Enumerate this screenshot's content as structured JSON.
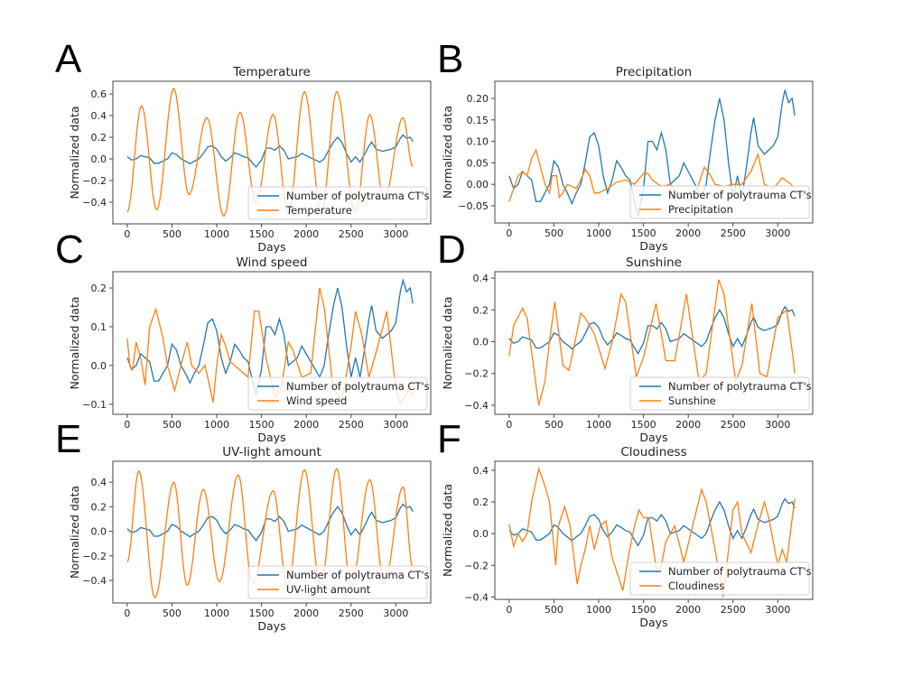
{
  "chart_data": [
    {
      "panel": "A",
      "type": "line",
      "title": "Temperature",
      "xlabel": "Days",
      "ylabel": "Normalized data",
      "xlim": [
        -160,
        3390
      ],
      "ylim": [
        -0.6,
        0.717
      ],
      "xticks": [
        0,
        500,
        1000,
        1500,
        2000,
        2500,
        3000
      ],
      "yticks": [
        -0.4,
        -0.2,
        0.0,
        0.2,
        0.4,
        0.6
      ],
      "ytick_labels": [
        "−0.4",
        "−0.2",
        "0.0",
        "0.2",
        "0.4",
        "0.6"
      ],
      "legend": [
        "Number of polytrauma CT's",
        "Temperature"
      ],
      "legend_placement": "lower-right",
      "smooth": true,
      "series": [
        [
          0,
          -0.49
        ],
        [
          160,
          0.49
        ],
        [
          330,
          -0.47
        ],
        [
          520,
          0.65
        ],
        [
          690,
          -0.33
        ],
        [
          890,
          0.38
        ],
        [
          1080,
          -0.53
        ],
        [
          1260,
          0.43
        ],
        [
          1440,
          -0.4
        ],
        [
          1630,
          0.41
        ],
        [
          1800,
          -0.5
        ],
        [
          1980,
          0.62
        ],
        [
          2170,
          -0.5
        ],
        [
          2340,
          0.62
        ],
        [
          2550,
          -0.5
        ],
        [
          2710,
          0.41
        ],
        [
          2870,
          -0.38
        ],
        [
          3080,
          0.38
        ],
        [
          3190,
          -0.07
        ]
      ]
    },
    {
      "panel": "B",
      "type": "line",
      "title": "Precipitation",
      "xlabel": "Days",
      "ylabel": "Normalized data",
      "xlim": [
        -160,
        3390
      ],
      "ylim": [
        -0.09,
        0.24
      ],
      "xticks": [
        0,
        500,
        1000,
        1500,
        2000,
        2500,
        3000
      ],
      "yticks": [
        -0.05,
        0.0,
        0.05,
        0.1,
        0.15,
        0.2
      ],
      "ytick_labels": [
        "−0.05",
        "0.00",
        "0.05",
        "0.10",
        "0.15",
        "0.20"
      ],
      "legend": [
        "Number of polytrauma CT's",
        "Precipitation"
      ],
      "legend_placement": "lower-right",
      "smooth": false,
      "series": [
        [
          0,
          -0.04
        ],
        [
          50,
          -0.01
        ],
        [
          100,
          0.02
        ],
        [
          150,
          0.03
        ],
        [
          200,
          0.02
        ],
        [
          250,
          0.06
        ],
        [
          300,
          0.08
        ],
        [
          350,
          0.04
        ],
        [
          400,
          0.0
        ],
        [
          450,
          -0.02
        ],
        [
          480,
          0.02
        ],
        [
          530,
          0.02
        ],
        [
          560,
          -0.03
        ],
        [
          600,
          -0.02
        ],
        [
          650,
          0.0
        ],
        [
          700,
          -0.005
        ],
        [
          750,
          -0.01
        ],
        [
          800,
          0.01
        ],
        [
          850,
          0.035
        ],
        [
          900,
          0.02
        ],
        [
          950,
          -0.02
        ],
        [
          1000,
          -0.02
        ],
        [
          1100,
          -0.01
        ],
        [
          1200,
          0.005
        ],
        [
          1300,
          0.01
        ],
        [
          1400,
          0.0
        ],
        [
          1500,
          0.025
        ],
        [
          1550,
          0.025
        ],
        [
          1600,
          0.01
        ],
        [
          1700,
          -0.005
        ],
        [
          1800,
          0.0
        ],
        [
          1900,
          -0.02
        ],
        [
          2000,
          -0.04
        ],
        [
          2100,
          -0.01
        ],
        [
          2180,
          0.04
        ],
        [
          2250,
          0.02
        ],
        [
          2300,
          0.0
        ],
        [
          2400,
          -0.005
        ],
        [
          2500,
          0.0
        ],
        [
          2600,
          0.0
        ],
        [
          2700,
          0.03
        ],
        [
          2780,
          0.07
        ],
        [
          2850,
          0.0
        ],
        [
          2950,
          -0.01
        ],
        [
          3050,
          0.015
        ],
        [
          3150,
          0.0
        ],
        [
          3190,
          -0.01
        ]
      ]
    },
    {
      "panel": "C",
      "type": "line",
      "title": "Wind speed",
      "xlabel": "Days",
      "ylabel": "Normalized data",
      "xlim": [
        -160,
        3390
      ],
      "ylim": [
        -0.126,
        0.242
      ],
      "xticks": [
        0,
        500,
        1000,
        1500,
        2000,
        2500,
        3000
      ],
      "yticks": [
        -0.1,
        0.0,
        0.1,
        0.2
      ],
      "ytick_labels": [
        "−0.1",
        "0.0",
        "0.1",
        "0.2"
      ],
      "legend": [
        "Number of polytrauma CT's",
        "Wind speed"
      ],
      "legend_placement": "lower-right",
      "smooth": false,
      "series": [
        [
          0,
          0.07
        ],
        [
          30,
          0.0
        ],
        [
          60,
          -0.01
        ],
        [
          100,
          0.06
        ],
        [
          150,
          0.02
        ],
        [
          200,
          -0.05
        ],
        [
          250,
          0.1
        ],
        [
          320,
          0.145
        ],
        [
          400,
          0.07
        ],
        [
          450,
          0.0
        ],
        [
          530,
          -0.065
        ],
        [
          600,
          0.0
        ],
        [
          670,
          0.06
        ],
        [
          720,
          0.0
        ],
        [
          800,
          -0.02
        ],
        [
          870,
          0.0
        ],
        [
          960,
          -0.095
        ],
        [
          1000,
          0.0
        ],
        [
          1050,
          0.08
        ],
        [
          1100,
          0.05
        ],
        [
          1150,
          0.01
        ],
        [
          1250,
          -0.01
        ],
        [
          1350,
          -0.03
        ],
        [
          1420,
          0.14
        ],
        [
          1470,
          0.14
        ],
        [
          1550,
          0.02
        ],
        [
          1650,
          -0.08
        ],
        [
          1720,
          -0.06
        ],
        [
          1800,
          0.06
        ],
        [
          1850,
          0.04
        ],
        [
          1950,
          -0.03
        ],
        [
          2050,
          -0.02
        ],
        [
          2150,
          0.2
        ],
        [
          2200,
          0.15
        ],
        [
          2300,
          -0.06
        ],
        [
          2400,
          -0.09
        ],
        [
          2500,
          0.05
        ],
        [
          2550,
          0.14
        ],
        [
          2620,
          0.08
        ],
        [
          2700,
          -0.03
        ],
        [
          2800,
          0.05
        ],
        [
          2900,
          0.14
        ],
        [
          3000,
          -0.06
        ],
        [
          3050,
          -0.1
        ],
        [
          3150,
          -0.06
        ],
        [
          3190,
          -0.08
        ]
      ]
    },
    {
      "panel": "D",
      "type": "line",
      "title": "Sunshine",
      "xlabel": "Days",
      "ylabel": "Normalized data",
      "xlim": [
        -160,
        3390
      ],
      "ylim": [
        -0.457,
        0.44
      ],
      "xticks": [
        0,
        500,
        1000,
        1500,
        2000,
        2500,
        3000
      ],
      "yticks": [
        -0.4,
        -0.2,
        0.0,
        0.2,
        0.4
      ],
      "ytick_labels": [
        "−0.4",
        "−0.2",
        "0.0",
        "0.2",
        "0.4"
      ],
      "legend": [
        "Number of polytrauma CT's",
        "Sunshine"
      ],
      "legend_placement": "lower-right",
      "smooth": false,
      "series": [
        [
          0,
          -0.09
        ],
        [
          50,
          0.1
        ],
        [
          150,
          0.21
        ],
        [
          200,
          0.15
        ],
        [
          330,
          -0.4
        ],
        [
          400,
          -0.25
        ],
        [
          450,
          0.0
        ],
        [
          510,
          0.25
        ],
        [
          600,
          -0.15
        ],
        [
          670,
          -0.18
        ],
        [
          800,
          0.18
        ],
        [
          850,
          0.15
        ],
        [
          950,
          0.05
        ],
        [
          1070,
          -0.17
        ],
        [
          1150,
          0.0
        ],
        [
          1250,
          0.3
        ],
        [
          1300,
          0.25
        ],
        [
          1420,
          -0.22
        ],
        [
          1500,
          -0.1
        ],
        [
          1640,
          0.24
        ],
        [
          1750,
          -0.12
        ],
        [
          1850,
          -0.12
        ],
        [
          1980,
          0.3
        ],
        [
          2120,
          -0.25
        ],
        [
          2200,
          -0.2
        ],
        [
          2340,
          0.39
        ],
        [
          2400,
          0.3
        ],
        [
          2530,
          -0.25
        ],
        [
          2600,
          -0.15
        ],
        [
          2710,
          0.24
        ],
        [
          2800,
          -0.2
        ],
        [
          2880,
          -0.22
        ],
        [
          3000,
          0.15
        ],
        [
          3100,
          0.2
        ],
        [
          3170,
          -0.1
        ],
        [
          3190,
          -0.2
        ]
      ]
    },
    {
      "panel": "E",
      "type": "line",
      "title": "UV-light amount",
      "xlabel": "Days",
      "ylabel": "Normalized data",
      "xlim": [
        -160,
        3390
      ],
      "ylim": [
        -0.584,
        0.57
      ],
      "xticks": [
        0,
        500,
        1000,
        1500,
        2000,
        2500,
        3000
      ],
      "yticks": [
        -0.4,
        -0.2,
        0.0,
        0.2,
        0.4
      ],
      "ytick_labels": [
        "−0.4",
        "−0.2",
        "0.0",
        "0.2",
        "0.4"
      ],
      "legend": [
        "Number of polytrauma CT's",
        "UV-light amount"
      ],
      "legend_placement": "lower-right",
      "smooth": true,
      "series": [
        [
          0,
          -0.25
        ],
        [
          130,
          0.49
        ],
        [
          310,
          -0.54
        ],
        [
          520,
          0.4
        ],
        [
          670,
          -0.44
        ],
        [
          850,
          0.34
        ],
        [
          1030,
          -0.41
        ],
        [
          1240,
          0.46
        ],
        [
          1400,
          -0.43
        ],
        [
          1630,
          0.33
        ],
        [
          1790,
          -0.45
        ],
        [
          1980,
          0.5
        ],
        [
          2160,
          -0.45
        ],
        [
          2340,
          0.51
        ],
        [
          2500,
          -0.45
        ],
        [
          2710,
          0.42
        ],
        [
          2870,
          -0.43
        ],
        [
          3080,
          0.36
        ],
        [
          3190,
          -0.3
        ]
      ]
    },
    {
      "panel": "F",
      "type": "line",
      "title": "Cloudiness",
      "xlabel": "Days",
      "ylabel": "Normalized data",
      "xlim": [
        -160,
        3390
      ],
      "ylim": [
        -0.415,
        0.457
      ],
      "xticks": [
        0,
        500,
        1000,
        1500,
        2000,
        2500,
        3000
      ],
      "yticks": [
        -0.4,
        -0.2,
        0.0,
        0.2,
        0.4
      ],
      "ytick_labels": [
        "−0.4",
        "−0.2",
        "0.0",
        "0.2",
        "0.4"
      ],
      "legend": [
        "Number of polytrauma CT's",
        "Cloudiness"
      ],
      "legend_placement": "lower-right",
      "smooth": false,
      "series": [
        [
          0,
          0.06
        ],
        [
          50,
          -0.08
        ],
        [
          100,
          0.0
        ],
        [
          150,
          -0.05
        ],
        [
          200,
          0.0
        ],
        [
          250,
          0.2
        ],
        [
          330,
          0.41
        ],
        [
          400,
          0.3
        ],
        [
          450,
          0.2
        ],
        [
          520,
          -0.2
        ],
        [
          550,
          0.05
        ],
        [
          620,
          0.17
        ],
        [
          680,
          0.05
        ],
        [
          760,
          -0.32
        ],
        [
          800,
          -0.2
        ],
        [
          850,
          -0.1
        ],
        [
          900,
          0.05
        ],
        [
          950,
          -0.1
        ],
        [
          1020,
          0.05
        ],
        [
          1080,
          0.08
        ],
        [
          1150,
          -0.15
        ],
        [
          1270,
          -0.36
        ],
        [
          1330,
          -0.15
        ],
        [
          1400,
          0.05
        ],
        [
          1450,
          0.15
        ],
        [
          1500,
          0.1
        ],
        [
          1560,
          0.1
        ],
        [
          1650,
          -0.25
        ],
        [
          1700,
          -0.2
        ],
        [
          1750,
          -0.05
        ],
        [
          1850,
          0.05
        ],
        [
          1950,
          -0.18
        ],
        [
          2050,
          0.05
        ],
        [
          2150,
          0.28
        ],
        [
          2200,
          0.2
        ],
        [
          2300,
          -0.1
        ],
        [
          2390,
          -0.4
        ],
        [
          2450,
          -0.1
        ],
        [
          2500,
          0.15
        ],
        [
          2550,
          0.2
        ],
        [
          2600,
          0.0
        ],
        [
          2700,
          -0.12
        ],
        [
          2800,
          0.1
        ],
        [
          2850,
          0.2
        ],
        [
          2900,
          0.1
        ],
        [
          3000,
          -0.2
        ],
        [
          3050,
          -0.1
        ],
        [
          3100,
          -0.18
        ],
        [
          3150,
          0.05
        ],
        [
          3190,
          0.22
        ]
      ]
    }
  ],
  "ct_series": [
    [
      0,
      0.02
    ],
    [
      50,
      -0.01
    ],
    [
      100,
      0.0
    ],
    [
      150,
      0.03
    ],
    [
      200,
      0.02
    ],
    [
      250,
      0.01
    ],
    [
      300,
      -0.04
    ],
    [
      350,
      -0.04
    ],
    [
      400,
      -0.02
    ],
    [
      450,
      0.0
    ],
    [
      500,
      0.055
    ],
    [
      550,
      0.04
    ],
    [
      600,
      0.0
    ],
    [
      650,
      -0.02
    ],
    [
      700,
      -0.045
    ],
    [
      750,
      -0.02
    ],
    [
      800,
      0.0
    ],
    [
      850,
      0.05
    ],
    [
      900,
      0.11
    ],
    [
      950,
      0.12
    ],
    [
      1000,
      0.09
    ],
    [
      1050,
      0.02
    ],
    [
      1100,
      -0.02
    ],
    [
      1150,
      0.01
    ],
    [
      1200,
      0.055
    ],
    [
      1250,
      0.04
    ],
    [
      1300,
      0.02
    ],
    [
      1350,
      0.01
    ],
    [
      1400,
      -0.04
    ],
    [
      1440,
      -0.075
    ],
    [
      1500,
      -0.01
    ],
    [
      1550,
      0.1
    ],
    [
      1600,
      0.1
    ],
    [
      1650,
      0.08
    ],
    [
      1700,
      0.12
    ],
    [
      1750,
      0.08
    ],
    [
      1800,
      0.0
    ],
    [
      1850,
      0.01
    ],
    [
      1900,
      0.02
    ],
    [
      1950,
      0.05
    ],
    [
      2000,
      0.03
    ],
    [
      2050,
      0.01
    ],
    [
      2100,
      -0.01
    ],
    [
      2150,
      -0.03
    ],
    [
      2200,
      0.0
    ],
    [
      2250,
      0.08
    ],
    [
      2300,
      0.15
    ],
    [
      2350,
      0.2
    ],
    [
      2400,
      0.15
    ],
    [
      2450,
      0.05
    ],
    [
      2500,
      -0.03
    ],
    [
      2550,
      0.02
    ],
    [
      2600,
      -0.03
    ],
    [
      2650,
      0.04
    ],
    [
      2700,
      0.12
    ],
    [
      2730,
      0.155
    ],
    [
      2780,
      0.09
    ],
    [
      2850,
      0.07
    ],
    [
      2900,
      0.08
    ],
    [
      2950,
      0.09
    ],
    [
      3000,
      0.11
    ],
    [
      3050,
      0.19
    ],
    [
      3080,
      0.22
    ],
    [
      3120,
      0.19
    ],
    [
      3160,
      0.2
    ],
    [
      3190,
      0.16
    ]
  ],
  "colors": {
    "ct": "#1f77b4",
    "weather": "#ff7f0e",
    "axes": "#444444"
  }
}
